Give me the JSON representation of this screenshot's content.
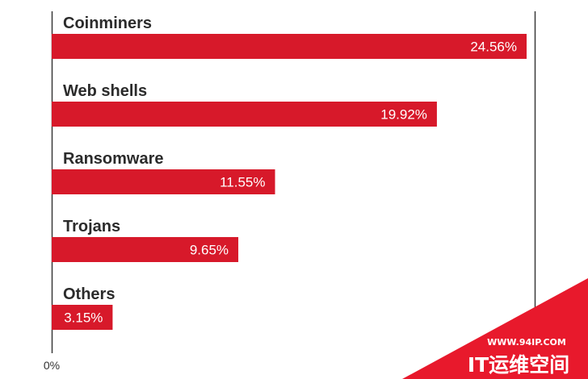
{
  "chart_data": {
    "type": "bar",
    "orientation": "horizontal",
    "categories": [
      "Coinminers",
      "Web shells",
      "Ransomware",
      "Trojans",
      "Others"
    ],
    "values": [
      24.56,
      19.92,
      11.55,
      9.65,
      3.15
    ],
    "value_labels": [
      "24.56%",
      "19.92%",
      "11.55%",
      "9.65%",
      "3.15%"
    ],
    "xlim": [
      0,
      25
    ],
    "x_tick_labels": [
      "0%"
    ],
    "bar_color": "#d7192a",
    "grid": false
  },
  "watermark": {
    "url": "WWW.94IP.COM",
    "brand": "IT运维空间",
    "color": "#e8192c"
  }
}
